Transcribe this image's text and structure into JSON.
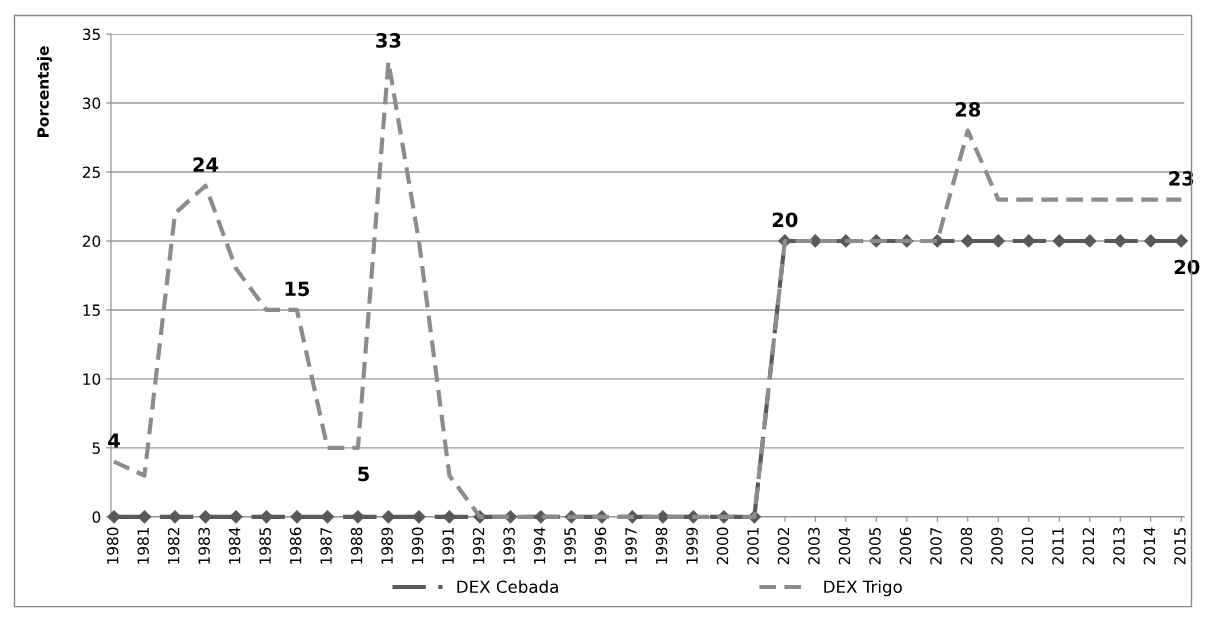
{
  "chart_data": {
    "type": "line",
    "ylabel": "Porcentaje",
    "categories": [
      "1980",
      "1981",
      "1982",
      "1983",
      "1984",
      "1985",
      "1986",
      "1987",
      "1988",
      "1989",
      "1990",
      "1991",
      "1992",
      "1993",
      "1994",
      "1995",
      "1996",
      "1997",
      "1998",
      "1999",
      "2000",
      "2001",
      "2002",
      "2003",
      "2004",
      "2005",
      "2006",
      "2007",
      "2008",
      "2009",
      "2010",
      "2011",
      "2012",
      "2013",
      "2014",
      "2015"
    ],
    "series": [
      {
        "name": "DEX Cebada",
        "color": "#595959",
        "marker": "diamond",
        "line_style": "dashed",
        "values": [
          0,
          0,
          0,
          0,
          0,
          0,
          0,
          0,
          0,
          0,
          0,
          0,
          0,
          0,
          0,
          0,
          0,
          0,
          0,
          0,
          0,
          0,
          20,
          20,
          20,
          20,
          20,
          20,
          20,
          20,
          20,
          20,
          20,
          20,
          20,
          20
        ],
        "value_labels": [
          null,
          null,
          null,
          null,
          null,
          null,
          null,
          null,
          null,
          null,
          null,
          null,
          null,
          null,
          null,
          null,
          null,
          null,
          null,
          null,
          null,
          null,
          "20",
          null,
          null,
          null,
          null,
          null,
          null,
          null,
          null,
          null,
          null,
          null,
          null,
          "20"
        ]
      },
      {
        "name": "DEX Trigo",
        "color": "#8c8c8c",
        "marker": "none",
        "line_style": "dashed",
        "values": [
          4,
          3,
          22,
          24,
          18,
          15,
          15,
          5,
          5,
          33,
          20,
          3,
          0,
          0,
          0,
          0,
          0,
          0,
          0,
          0,
          0,
          0,
          20,
          20,
          20,
          20,
          20,
          20,
          28,
          23,
          23,
          23,
          23,
          23,
          23,
          23
        ],
        "value_labels": [
          "4",
          null,
          null,
          "24",
          null,
          null,
          "15",
          null,
          "5",
          "33",
          null,
          null,
          null,
          null,
          null,
          null,
          null,
          null,
          null,
          null,
          null,
          null,
          null,
          null,
          null,
          null,
          null,
          null,
          "28",
          null,
          null,
          null,
          null,
          null,
          null,
          "23"
        ]
      }
    ],
    "ylim": [
      0,
      35
    ],
    "yticks": [
      0,
      5,
      10,
      15,
      20,
      25,
      30,
      35
    ],
    "grid": "y",
    "legend": "bottom"
  }
}
